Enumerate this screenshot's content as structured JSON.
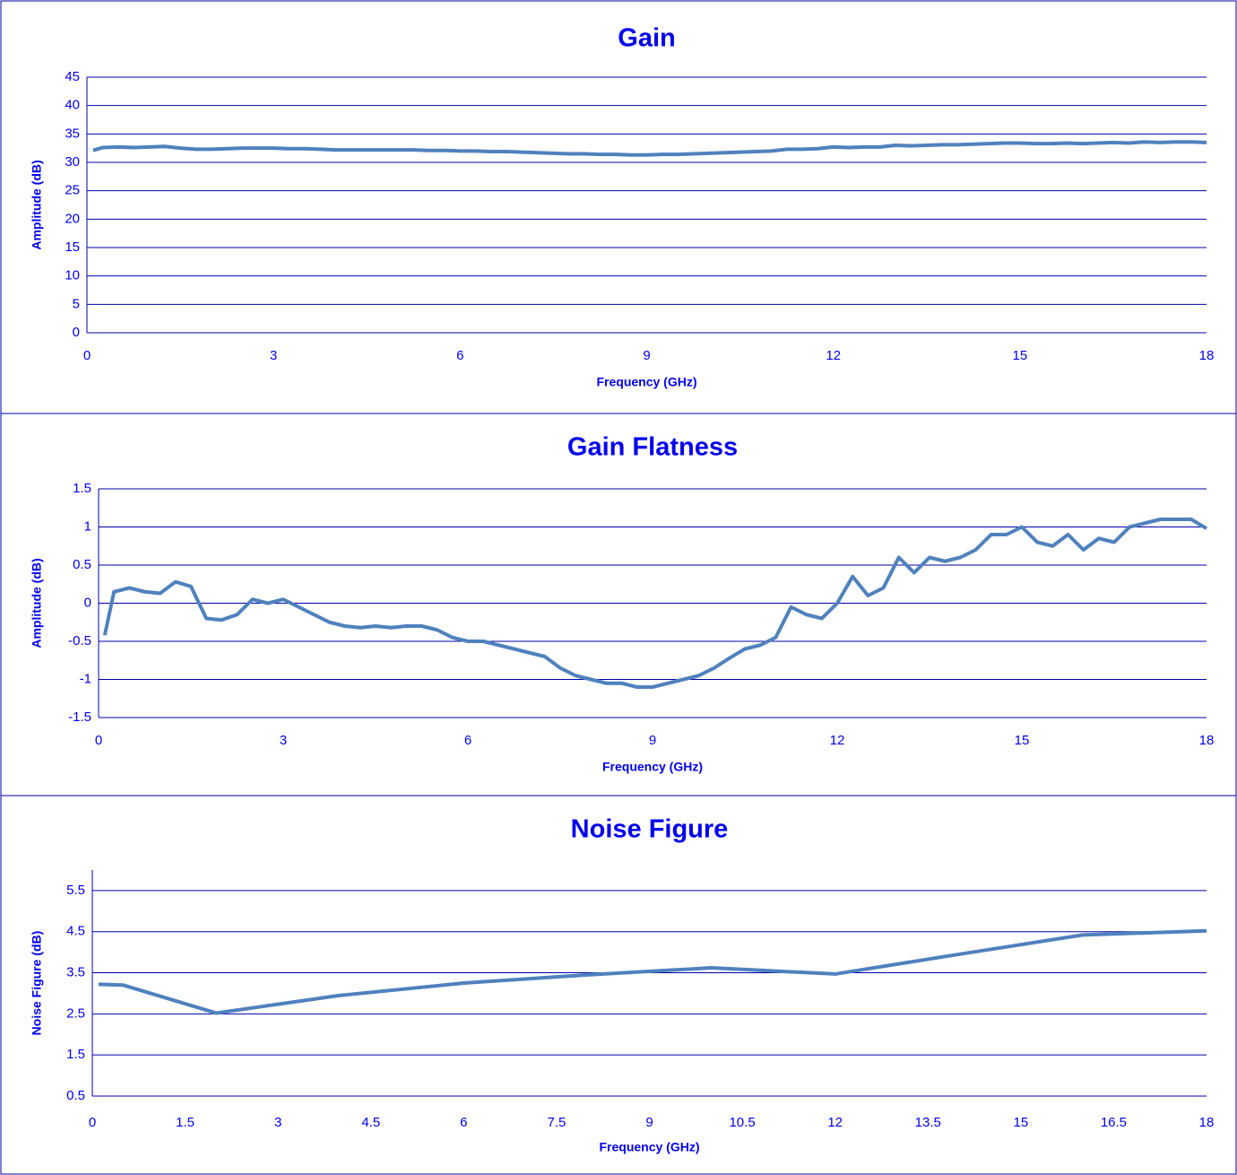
{
  "chart_data": [
    {
      "type": "line",
      "title": "Gain",
      "x_label": "Frequency (GHz)",
      "y_label": "Amplitude (dB)",
      "x": [
        0.1,
        0.25,
        0.5,
        0.75,
        1,
        1.25,
        1.5,
        1.75,
        2,
        2.25,
        2.5,
        2.75,
        3,
        3.25,
        3.5,
        3.75,
        4,
        4.25,
        4.5,
        4.75,
        5,
        5.25,
        5.5,
        5.75,
        6,
        6.25,
        6.5,
        6.75,
        7,
        7.25,
        7.5,
        7.75,
        8,
        8.25,
        8.5,
        8.75,
        9,
        9.25,
        9.5,
        9.75,
        10,
        10.25,
        10.5,
        10.75,
        11,
        11.25,
        11.5,
        11.75,
        12,
        12.25,
        12.5,
        12.75,
        13,
        13.25,
        13.5,
        13.75,
        14,
        14.25,
        14.5,
        14.75,
        15,
        15.25,
        15.5,
        15.75,
        16,
        16.25,
        16.5,
        16.75,
        17,
        17.25,
        17.5,
        17.75,
        18
      ],
      "series": [
        {
          "color": "#4f81bd",
          "values": [
            32.1,
            32.6,
            32.7,
            32.6,
            32.7,
            32.8,
            32.5,
            32.3,
            32.3,
            32.4,
            32.5,
            32.5,
            32.5,
            32.4,
            32.4,
            32.3,
            32.2,
            32.2,
            32.2,
            32.2,
            32.2,
            32.2,
            32.1,
            32.1,
            32.0,
            32.0,
            31.9,
            31.9,
            31.8,
            31.7,
            31.6,
            31.5,
            31.5,
            31.4,
            31.4,
            31.3,
            31.3,
            31.4,
            31.4,
            31.5,
            31.6,
            31.7,
            31.8,
            31.9,
            32.0,
            32.3,
            32.3,
            32.4,
            32.7,
            32.6,
            32.7,
            32.7,
            33.0,
            32.9,
            33.0,
            33.1,
            33.1,
            33.2,
            33.3,
            33.4,
            33.4,
            33.3,
            33.3,
            33.4,
            33.3,
            33.4,
            33.5,
            33.4,
            33.6,
            33.5,
            33.6,
            33.6,
            33.5
          ]
        }
      ],
      "xlim": [
        0,
        18
      ],
      "xticks": [
        0,
        3,
        6,
        9,
        12,
        15,
        18
      ],
      "ylim": [
        0,
        45
      ],
      "yticks": [
        0,
        5,
        10,
        15,
        20,
        25,
        30,
        35,
        40,
        45
      ],
      "grid": true
    },
    {
      "type": "line",
      "title": "Gain Flatness",
      "x_label": "Frequency (GHz)",
      "y_label": "Amplitude (dB)",
      "x": [
        0.1,
        0.25,
        0.5,
        0.75,
        1,
        1.25,
        1.5,
        1.75,
        2,
        2.25,
        2.5,
        2.75,
        3,
        3.25,
        3.5,
        3.75,
        4,
        4.25,
        4.5,
        4.75,
        5,
        5.25,
        5.5,
        5.75,
        6,
        6.25,
        6.5,
        6.75,
        7,
        7.25,
        7.5,
        7.75,
        8,
        8.25,
        8.5,
        8.75,
        9,
        9.25,
        9.5,
        9.75,
        10,
        10.25,
        10.5,
        10.75,
        11,
        11.25,
        11.5,
        11.75,
        12,
        12.25,
        12.5,
        12.75,
        13,
        13.25,
        13.5,
        13.75,
        14,
        14.25,
        14.5,
        14.75,
        15,
        15.25,
        15.5,
        15.75,
        16,
        16.25,
        16.5,
        16.75,
        17,
        17.25,
        17.5,
        17.75,
        18
      ],
      "series": [
        {
          "color": "#4f81bd",
          "values": [
            -0.42,
            0.15,
            0.2,
            0.15,
            0.13,
            0.28,
            0.22,
            -0.2,
            -0.22,
            -0.15,
            0.05,
            0.0,
            0.05,
            -0.05,
            -0.15,
            -0.25,
            -0.3,
            -0.32,
            -0.3,
            -0.32,
            -0.3,
            -0.3,
            -0.35,
            -0.45,
            -0.5,
            -0.5,
            -0.55,
            -0.6,
            -0.65,
            -0.7,
            -0.85,
            -0.95,
            -1.0,
            -1.05,
            -1.05,
            -1.1,
            -1.1,
            -1.05,
            -1.0,
            -0.95,
            -0.85,
            -0.72,
            -0.6,
            -0.55,
            -0.45,
            -0.05,
            -0.15,
            -0.2,
            0.0,
            0.35,
            0.1,
            0.2,
            0.6,
            0.4,
            0.6,
            0.55,
            0.6,
            0.7,
            0.9,
            0.9,
            1.0,
            0.8,
            0.75,
            0.9,
            0.7,
            0.85,
            0.8,
            1.0,
            1.05,
            1.1,
            1.1,
            1.1,
            0.98
          ]
        }
      ],
      "xlim": [
        0,
        18
      ],
      "xticks": [
        0,
        3,
        6,
        9,
        12,
        15,
        18
      ],
      "ylim": [
        -1.5,
        1.5
      ],
      "yticks": [
        -1.5,
        -1,
        -0.5,
        0,
        0.5,
        1,
        1.5
      ],
      "grid": true
    },
    {
      "type": "line",
      "title": "Noise Figure",
      "x_label": "Frequency (GHz)",
      "y_label": "Noise Figure (dB)",
      "x": [
        0.1,
        0.5,
        2,
        4,
        6,
        8,
        10,
        12,
        14,
        16,
        18
      ],
      "series": [
        {
          "color": "#4f81bd",
          "values": [
            3.22,
            3.2,
            2.52,
            2.95,
            3.25,
            3.45,
            3.62,
            3.47,
            3.95,
            4.42,
            4.52
          ]
        }
      ],
      "xlim": [
        0,
        18
      ],
      "xticks": [
        0,
        1.5,
        3,
        4.5,
        6,
        7.5,
        9,
        10.5,
        12,
        13.5,
        15,
        16.5,
        18
      ],
      "ylim": [
        0.5,
        6
      ],
      "yticks": [
        0.5,
        1.5,
        2.5,
        3.5,
        4.5,
        5.5
      ],
      "grid": true
    }
  ]
}
